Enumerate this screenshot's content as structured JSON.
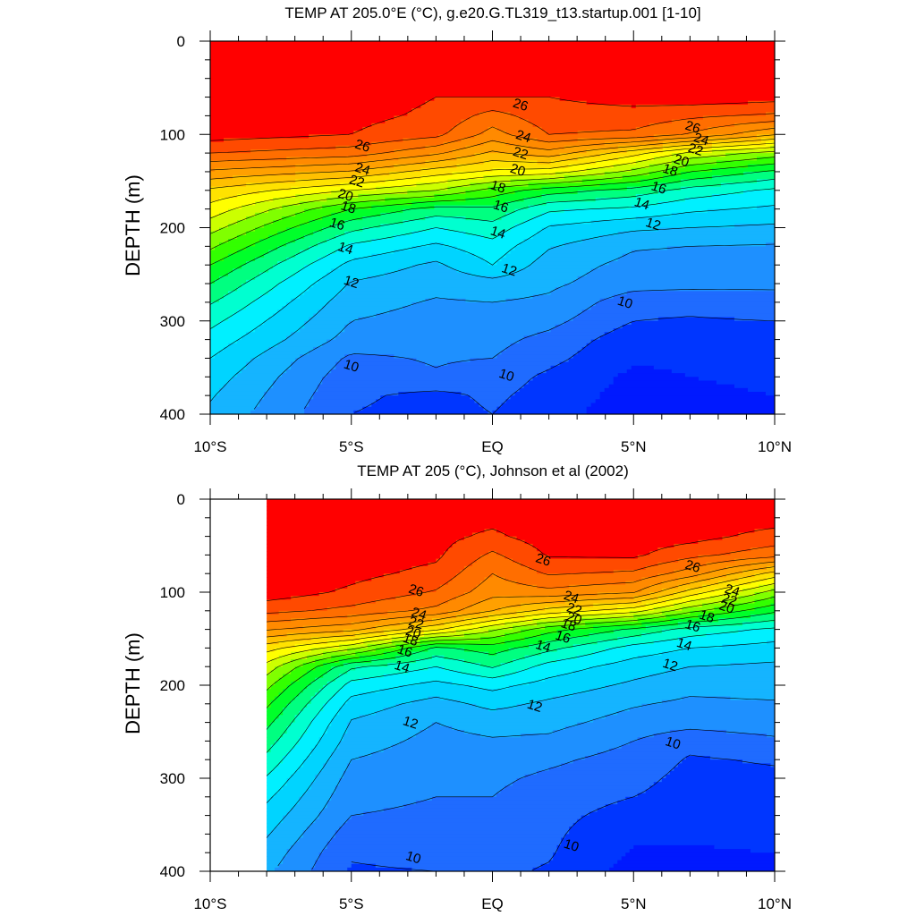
{
  "chart_data": [
    {
      "type": "heatmap",
      "title": "TEMP AT 205.0°E (°C), g.e20.G.TL319_t13.startup.001 [1-10]",
      "ylabel": "DEPTH (m)",
      "xlabel": "",
      "x_ticks": [
        "10°S",
        "5°S",
        "EQ",
        "5°N",
        "10°N"
      ],
      "x_tick_values": [
        -10,
        -5,
        0,
        5,
        10
      ],
      "y_ticks": [
        "0",
        "100",
        "200",
        "300",
        "400"
      ],
      "y_tick_values": [
        0,
        100,
        200,
        300,
        400
      ],
      "xlim": [
        -10,
        10
      ],
      "ylim": [
        400,
        0
      ],
      "data_xmin": -10,
      "contour_levels": [
        10,
        11,
        12,
        13,
        14,
        15,
        16,
        17,
        18,
        19,
        20,
        21,
        22,
        23,
        24,
        25,
        26,
        27,
        28
      ],
      "contour_labels": [
        {
          "text": "26",
          "x": 1.0,
          "y": 68
        },
        {
          "text": "24",
          "x": 1.1,
          "y": 102
        },
        {
          "text": "22",
          "x": 1.0,
          "y": 120
        },
        {
          "text": "20",
          "x": 0.9,
          "y": 138
        },
        {
          "text": "18",
          "x": 0.2,
          "y": 156
        },
        {
          "text": "16",
          "x": 0.3,
          "y": 177
        },
        {
          "text": "14",
          "x": 0.2,
          "y": 205
        },
        {
          "text": "12",
          "x": 0.6,
          "y": 245
        },
        {
          "text": "10",
          "x": 0.5,
          "y": 358
        },
        {
          "text": "26",
          "x": -4.6,
          "y": 112
        },
        {
          "text": "24",
          "x": -4.6,
          "y": 137
        },
        {
          "text": "22",
          "x": -4.8,
          "y": 150
        },
        {
          "text": "20",
          "x": -5.2,
          "y": 165
        },
        {
          "text": "18",
          "x": -5.1,
          "y": 178
        },
        {
          "text": "16",
          "x": -5.5,
          "y": 196
        },
        {
          "text": "14",
          "x": -5.2,
          "y": 222
        },
        {
          "text": "12",
          "x": -5.0,
          "y": 258
        },
        {
          "text": "10",
          "x": -5.0,
          "y": 348
        },
        {
          "text": "26",
          "x": 7.1,
          "y": 92
        },
        {
          "text": "24",
          "x": 7.4,
          "y": 105
        },
        {
          "text": "22",
          "x": 7.2,
          "y": 116
        },
        {
          "text": "20",
          "x": 6.7,
          "y": 128
        },
        {
          "text": "18",
          "x": 6.3,
          "y": 138
        },
        {
          "text": "16",
          "x": 5.9,
          "y": 157
        },
        {
          "text": "14",
          "x": 5.3,
          "y": 174
        },
        {
          "text": "12",
          "x": 5.7,
          "y": 196
        },
        {
          "text": "10",
          "x": 4.7,
          "y": 280
        }
      ],
      "fields": [
        {
          "xs": [
            -10,
            -5,
            -2,
            0,
            2,
            5,
            7,
            10
          ]
        },
        {
          "deps": [
            0,
            20,
            40,
            60,
            80,
            100,
            120,
            140,
            160,
            180,
            200,
            220,
            240,
            260,
            280,
            300,
            320,
            340,
            360,
            380,
            400
          ]
        },
        {
          "T": [
            [
              29.2,
              28.7,
              28.3,
              28.2,
              28.3,
              28.7,
              28.8,
              28.9
            ],
            [
              29.2,
              28.7,
              28.3,
              28.2,
              28.3,
              28.7,
              28.8,
              28.9
            ],
            [
              29.1,
              28.6,
              28.2,
              28.2,
              28.2,
              28.6,
              28.7,
              28.8
            ],
            [
              29.0,
              28.5,
              28.0,
              28.0,
              28.0,
              28.4,
              28.6,
              28.4
            ],
            [
              28.8,
              28.3,
              27.8,
              26.6,
              27.6,
              27.6,
              27.2,
              26.8
            ],
            [
              28.5,
              28.0,
              27.3,
              25.6,
              27.0,
              26.8,
              25.9,
              24.1
            ],
            [
              27.0,
              26.5,
              25.2,
              23.8,
              24.6,
              22.4,
              20.8,
              19.6
            ],
            [
              24.8,
              23.9,
              22.5,
              21.8,
              21.5,
              19.7,
              18.0,
              16.8
            ],
            [
              22.8,
              21.0,
              20.0,
              18.6,
              17.5,
              16.6,
              15.6,
              14.8
            ],
            [
              21.6,
              18.0,
              16.6,
              16.8,
              15.2,
              14.8,
              14.2,
              13.8
            ],
            [
              20.4,
              16.3,
              15.0,
              15.6,
              13.9,
              13.2,
              13.0,
              12.8
            ],
            [
              19.2,
              14.8,
              13.8,
              14.6,
              13.1,
              12.1,
              12.0,
              11.9
            ],
            [
              18.0,
              13.7,
              12.8,
              14.0,
              12.5,
              11.7,
              11.6,
              11.5
            ],
            [
              17.0,
              12.9,
              12.3,
              12.6,
              12.2,
              11.4,
              11.3,
              11.2
            ],
            [
              16.1,
              12.4,
              11.9,
              12.0,
              11.8,
              10.4,
              10.3,
              10.6
            ],
            [
              15.3,
              12.0,
              11.6,
              11.7,
              11.3,
              10.0,
              9.9,
              10.0
            ],
            [
              14.6,
              11.6,
              11.4,
              11.3,
              10.7,
              9.4,
              9.5,
              9.7
            ],
            [
              14.0,
              10.8,
              11.1,
              11.0,
              10.3,
              9.1,
              9.2,
              9.4
            ],
            [
              13.5,
              10.4,
              10.9,
              10.5,
              9.8,
              8.8,
              9.0,
              9.1
            ],
            [
              13.1,
              10.2,
              9.7,
              10.2,
              9.6,
              8.6,
              8.9,
              9.0
            ],
            [
              12.8,
              10.0,
              9.6,
              10.0,
              9.4,
              8.4,
              8.9,
              8.9
            ]
          ]
        }
      ]
    },
    {
      "type": "heatmap",
      "title": "TEMP AT 205 (°C), Johnson et al (2002)",
      "ylabel": "DEPTH (m)",
      "xlabel": "",
      "x_ticks": [
        "10°S",
        "5°S",
        "EQ",
        "5°N",
        "10°N"
      ],
      "x_tick_values": [
        -10,
        -5,
        0,
        5,
        10
      ],
      "y_ticks": [
        "0",
        "100",
        "200",
        "300",
        "400"
      ],
      "y_tick_values": [
        0,
        100,
        200,
        300,
        400
      ],
      "xlim": [
        -10,
        10
      ],
      "ylim": [
        400,
        0
      ],
      "data_xmin": -8,
      "contour_levels": [
        10,
        11,
        12,
        13,
        14,
        15,
        16,
        17,
        18,
        19,
        20,
        21,
        22,
        23,
        24,
        25,
        26,
        27,
        28
      ],
      "contour_labels": [
        {
          "text": "26",
          "x": -2.7,
          "y": 98
        },
        {
          "text": "24",
          "x": -2.6,
          "y": 123
        },
        {
          "text": "22",
          "x": -2.7,
          "y": 133
        },
        {
          "text": "20",
          "x": -2.8,
          "y": 143
        },
        {
          "text": "18",
          "x": -2.9,
          "y": 151
        },
        {
          "text": "16",
          "x": -3.1,
          "y": 163
        },
        {
          "text": "14",
          "x": -3.2,
          "y": 180
        },
        {
          "text": "12",
          "x": -2.9,
          "y": 240
        },
        {
          "text": "10",
          "x": -2.8,
          "y": 385
        },
        {
          "text": "26",
          "x": 1.8,
          "y": 65
        },
        {
          "text": "24",
          "x": 2.8,
          "y": 105
        },
        {
          "text": "22",
          "x": 2.9,
          "y": 118
        },
        {
          "text": "20",
          "x": 2.9,
          "y": 128
        },
        {
          "text": "18",
          "x": 2.7,
          "y": 135
        },
        {
          "text": "16",
          "x": 2.5,
          "y": 148
        },
        {
          "text": "14",
          "x": 1.8,
          "y": 158
        },
        {
          "text": "12",
          "x": 1.5,
          "y": 222
        },
        {
          "text": "10",
          "x": 2.8,
          "y": 372
        },
        {
          "text": "26",
          "x": 7.1,
          "y": 72
        },
        {
          "text": "24",
          "x": 8.5,
          "y": 98
        },
        {
          "text": "22",
          "x": 8.4,
          "y": 108
        },
        {
          "text": "20",
          "x": 8.3,
          "y": 116
        },
        {
          "text": "18",
          "x": 7.6,
          "y": 126
        },
        {
          "text": "16",
          "x": 7.1,
          "y": 136
        },
        {
          "text": "14",
          "x": 6.8,
          "y": 156
        },
        {
          "text": "12",
          "x": 6.3,
          "y": 178
        },
        {
          "text": "10",
          "x": 6.4,
          "y": 262
        }
      ],
      "fields": [
        {
          "xs": [
            -8,
            -5,
            -2,
            0,
            2,
            5,
            7,
            10
          ]
        },
        {
          "deps": [
            0,
            20,
            40,
            60,
            80,
            100,
            120,
            140,
            160,
            180,
            200,
            220,
            240,
            260,
            280,
            300,
            320,
            340,
            360,
            380,
            400
          ]
        },
        {
          "T": [
            [
              29.3,
              29.0,
              28.4,
              28.3,
              28.6,
              28.7,
              28.6,
              28.5
            ],
            [
              29.3,
              29.0,
              28.4,
              28.3,
              28.6,
              28.7,
              28.6,
              28.5
            ],
            [
              29.2,
              28.9,
              28.3,
              27.8,
              28.5,
              28.6,
              28.4,
              27.6
            ],
            [
              29.1,
              28.6,
              28.2,
              26.8,
              28.1,
              28.2,
              27.3,
              26.4
            ],
            [
              28.9,
              28.3,
              27.7,
              26.0,
              27.1,
              26.8,
              25.5,
              22.6
            ],
            [
              28.6,
              27.8,
              26.9,
              25.4,
              25.7,
              25.1,
              22.6,
              19.6
            ],
            [
              27.3,
              26.7,
              25.7,
              24.0,
              22.6,
              21.4,
              19.3,
              17.2
            ],
            [
              25.1,
              24.3,
              22.2,
              20.2,
              18.4,
              16.8,
              15.6,
              14.8
            ],
            [
              22.4,
              20.3,
              16.8,
              17.5,
              16.3,
              14.6,
              14.0,
              13.6
            ],
            [
              20.6,
              16.2,
              15.0,
              16.1,
              14.6,
              13.5,
              13.0,
              12.8
            ],
            [
              19.3,
              14.6,
              13.7,
              14.3,
              13.6,
              12.8,
              12.3,
              12.4
            ],
            [
              18.2,
              13.6,
              12.6,
              13.3,
              12.8,
              12.1,
              11.8,
              11.9
            ],
            [
              17.3,
              12.9,
              12.0,
              12.4,
              12.3,
              11.6,
              11.4,
              11.6
            ],
            [
              16.5,
              12.5,
              11.7,
              11.9,
              11.8,
              11.0,
              10.3,
              10.8
            ],
            [
              15.7,
              12.0,
              11.4,
              11.5,
              11.2,
              10.6,
              9.9,
              10.1
            ],
            [
              14.9,
              11.6,
              11.2,
              11.2,
              10.8,
              10.3,
              9.7,
              9.8
            ],
            [
              14.2,
              11.3,
              11.0,
              11.0,
              10.5,
              10.0,
              9.6,
              9.7
            ],
            [
              13.6,
              11.0,
              10.8,
              10.9,
              10.3,
              9.6,
              9.4,
              9.6
            ],
            [
              13.1,
              10.5,
              10.6,
              10.7,
              10.2,
              9.2,
              9.1,
              9.3
            ],
            [
              12.6,
              10.1,
              10.3,
              10.4,
              10.1,
              8.9,
              8.9,
              9.0
            ],
            [
              12.2,
              9.9,
              10.0,
              10.2,
              9.9,
              8.6,
              8.6,
              8.8
            ]
          ]
        }
      ]
    }
  ]
}
